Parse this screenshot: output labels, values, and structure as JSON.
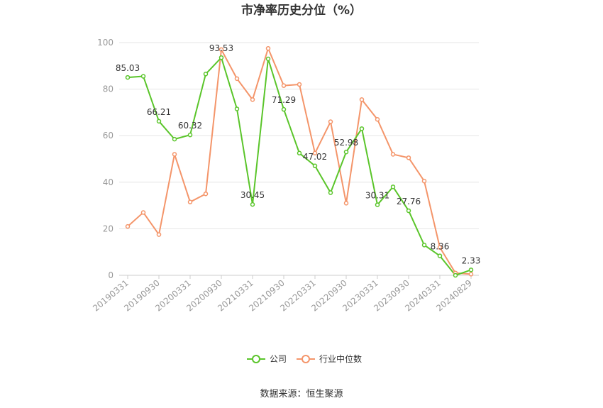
{
  "chart_data": {
    "type": "line",
    "title": "市净率历史分位（%）",
    "xlabel": "",
    "ylabel": "",
    "ylim": [
      0,
      100
    ],
    "yticks": [
      "0",
      "20",
      "40",
      "60",
      "80",
      "100"
    ],
    "xtick_labels": [
      "20190331",
      "20190930",
      "20200331",
      "20200930",
      "20210331",
      "20210930",
      "20220331",
      "20220930",
      "20230331",
      "20230930",
      "20240331",
      "20240829"
    ],
    "grid": true,
    "legend_position": "bottom",
    "point_count": 23,
    "series": [
      {
        "name": "公司",
        "color": "#5ac52a",
        "values": [
          85.03,
          85.5,
          66.21,
          58.5,
          60.32,
          86.5,
          93.53,
          71.5,
          30.45,
          93.0,
          71.29,
          52.5,
          47.02,
          35.5,
          52.98,
          63.0,
          30.31,
          38.0,
          27.76,
          13.0,
          8.36,
          0.0,
          2.33
        ]
      },
      {
        "name": "行业中位数",
        "color": "#f4956a",
        "values": [
          21.0,
          27.0,
          17.5,
          52.0,
          31.5,
          35.0,
          97.0,
          84.5,
          75.5,
          97.5,
          81.5,
          82.0,
          52.5,
          66.0,
          31.0,
          75.5,
          67.0,
          52.0,
          50.5,
          40.5,
          12.0,
          1.0,
          0.5
        ]
      }
    ],
    "data_labels": [
      {
        "series": 0,
        "index": 0,
        "text": "85.03"
      },
      {
        "series": 0,
        "index": 2,
        "text": "66.21"
      },
      {
        "series": 0,
        "index": 4,
        "text": "60.32"
      },
      {
        "series": 0,
        "index": 6,
        "text": "93.53"
      },
      {
        "series": 0,
        "index": 8,
        "text": "30.45"
      },
      {
        "series": 0,
        "index": 10,
        "text": "71.29"
      },
      {
        "series": 0,
        "index": 12,
        "text": "47.02"
      },
      {
        "series": 0,
        "index": 14,
        "text": "52.98"
      },
      {
        "series": 0,
        "index": 16,
        "text": "30.31"
      },
      {
        "series": 0,
        "index": 18,
        "text": "27.76"
      },
      {
        "series": 0,
        "index": 20,
        "text": "8.36"
      },
      {
        "series": 0,
        "index": 22,
        "text": "2.33"
      }
    ]
  },
  "source": "数据来源：恒生聚源"
}
